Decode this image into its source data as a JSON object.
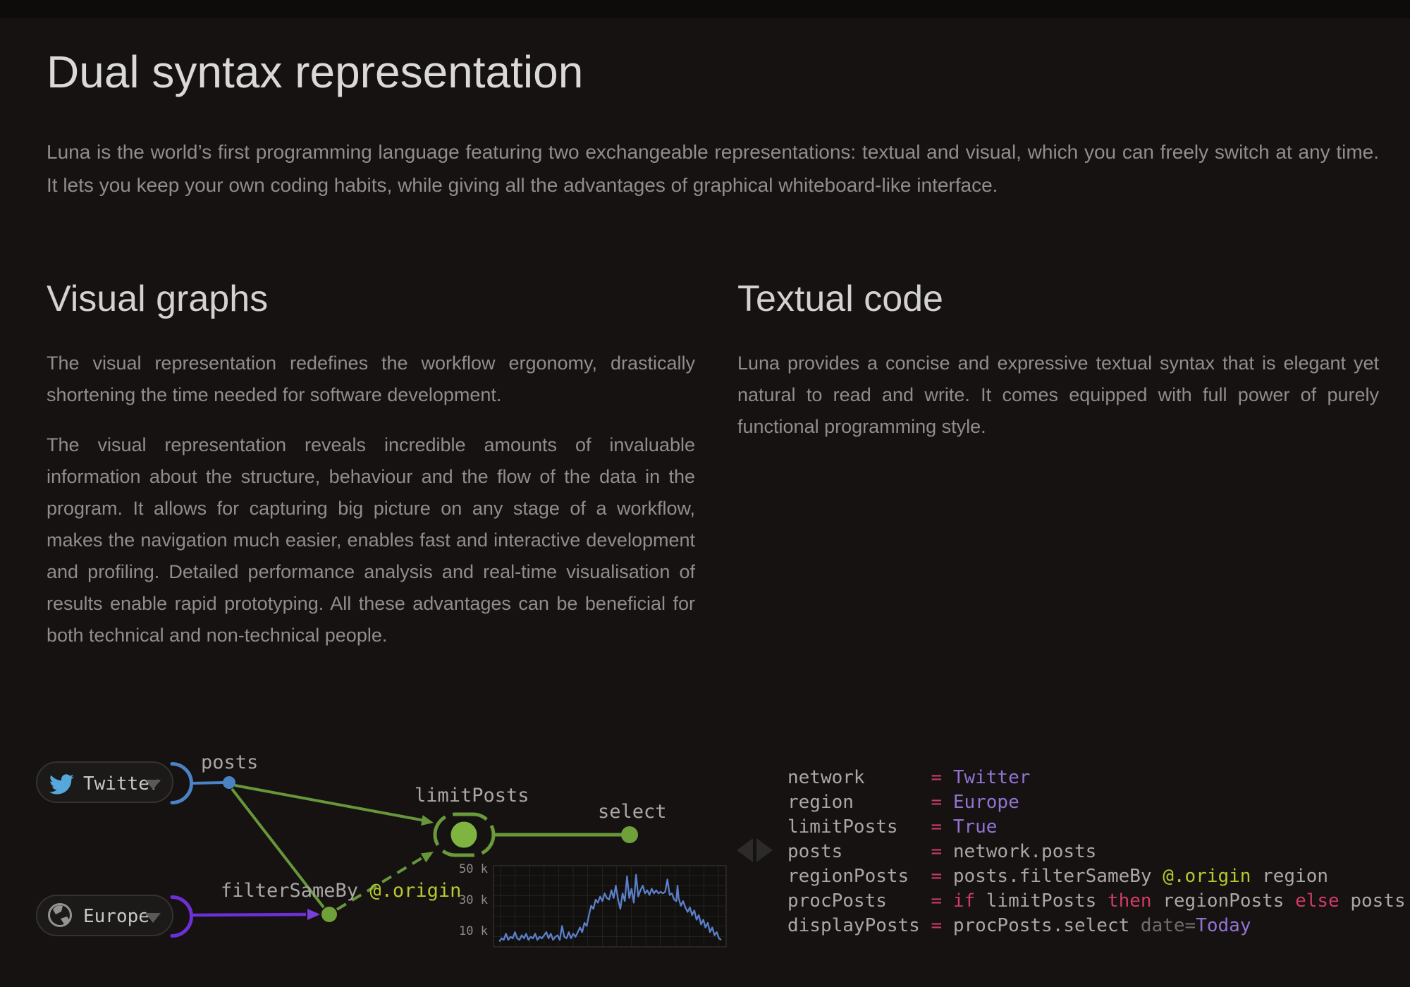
{
  "page": {
    "title": "Dual syntax representation",
    "intro": "Luna is the world’s first programming language featuring two exchangeable representations: textual and visual, which you can freely switch at any time. It lets you keep your own coding habits, while giving all the advantages of graphical whiteboard-like interface."
  },
  "visual_graphs": {
    "heading": "Visual graphs",
    "paragraphs": [
      "The visual representation redefines the workflow ergonomy, drastically shortening the time needed for software development.",
      "The visual representation reveals incredible amounts of invaluable information about the structure, behaviour and the flow of the data in the program. It allows for capturing big picture on any stage of a workflow, makes the navigation much easier, enables fast and interactive development and profiling. Detailed performance analysis and real-time visualisation of results enable rapid prototyping. All these advantages can be beneficial for both technical and non-technical people."
    ]
  },
  "textual_code": {
    "heading": "Textual code",
    "paragraph": "Luna provides a concise and expressive textual syntax that is elegant yet natural to read and write. It comes equipped with full power of purely functional programming style."
  },
  "graph": {
    "twitter_label": "Twitter",
    "europe_label": "Europe",
    "posts_label": "posts",
    "limitposts_label": "limitPosts",
    "select_label": "select",
    "filter_label": "filterSameBy ",
    "accessor_label": "@.origin"
  },
  "code": {
    "lines": [
      [
        {
          "t": "network      ",
          "c": "n"
        },
        {
          "t": "= ",
          "c": "o"
        },
        {
          "t": "Twitter",
          "c": "v"
        }
      ],
      [
        {
          "t": "region       ",
          "c": "n"
        },
        {
          "t": "= ",
          "c": "o"
        },
        {
          "t": "Europe",
          "c": "v"
        }
      ],
      [
        {
          "t": "limitPosts   ",
          "c": "n"
        },
        {
          "t": "= ",
          "c": "o"
        },
        {
          "t": "True",
          "c": "v"
        }
      ],
      [
        {
          "t": "posts        ",
          "c": "n"
        },
        {
          "t": "= ",
          "c": "o"
        },
        {
          "t": "network.posts",
          "c": "p"
        }
      ],
      [
        {
          "t": "regionPosts  ",
          "c": "n"
        },
        {
          "t": "= ",
          "c": "o"
        },
        {
          "t": "posts.filterSameBy ",
          "c": "p"
        },
        {
          "t": "@.origin",
          "c": "a"
        },
        {
          "t": " region",
          "c": "p"
        }
      ],
      [
        {
          "t": "procPosts    ",
          "c": "n"
        },
        {
          "t": "= ",
          "c": "o"
        },
        {
          "t": "if ",
          "c": "k"
        },
        {
          "t": "limitPosts ",
          "c": "p"
        },
        {
          "t": "then ",
          "c": "k"
        },
        {
          "t": "regionPosts ",
          "c": "p"
        },
        {
          "t": "else ",
          "c": "k"
        },
        {
          "t": "posts",
          "c": "p"
        }
      ],
      [
        {
          "t": "displayPosts ",
          "c": "n"
        },
        {
          "t": "= ",
          "c": "o"
        },
        {
          "t": "procPosts.select ",
          "c": "p"
        },
        {
          "t": "date=",
          "c": "d"
        },
        {
          "t": "Today",
          "c": "v"
        }
      ]
    ]
  },
  "colors": {
    "background": "#151211",
    "heading": "#d6d5d3",
    "body_text": "#8f8e8c",
    "twitter_blue": "#56a8dc",
    "edge_blue": "#4a82c4",
    "europe_purple": "#6d2fd6",
    "edge_green": "#67973a",
    "node_green": "#80b441",
    "code_pink": "#c93d63",
    "code_purple": "#9273d2",
    "code_yellow": "#b6c92f",
    "chart_line_blue": "#5b7fca"
  },
  "chart_data": {
    "type": "line",
    "title": "",
    "xlabel": "",
    "ylabel": "",
    "y_ticks": [
      "50 k",
      "30 k",
      "10 k"
    ],
    "y_tick_values": [
      50000,
      30000,
      10000
    ],
    "ylim": [
      0,
      54000
    ],
    "xlim": [
      0,
      1
    ],
    "grid": true,
    "legend": false,
    "points": [
      [
        0.01,
        3
      ],
      [
        0.02,
        5
      ],
      [
        0.03,
        4
      ],
      [
        0.04,
        8
      ],
      [
        0.05,
        4
      ],
      [
        0.06,
        6
      ],
      [
        0.07,
        5
      ],
      [
        0.08,
        9
      ],
      [
        0.09,
        5
      ],
      [
        0.1,
        4
      ],
      [
        0.11,
        7
      ],
      [
        0.12,
        5
      ],
      [
        0.13,
        8
      ],
      [
        0.14,
        4
      ],
      [
        0.15,
        6
      ],
      [
        0.16,
        5
      ],
      [
        0.17,
        8
      ],
      [
        0.18,
        4
      ],
      [
        0.19,
        6
      ],
      [
        0.2,
        5
      ],
      [
        0.21,
        7
      ],
      [
        0.22,
        9
      ],
      [
        0.23,
        5
      ],
      [
        0.24,
        8
      ],
      [
        0.25,
        4
      ],
      [
        0.26,
        6
      ],
      [
        0.27,
        7
      ],
      [
        0.28,
        4
      ],
      [
        0.29,
        13
      ],
      [
        0.3,
        6
      ],
      [
        0.31,
        5
      ],
      [
        0.32,
        9
      ],
      [
        0.33,
        5
      ],
      [
        0.34,
        8
      ],
      [
        0.35,
        6
      ],
      [
        0.36,
        9
      ],
      [
        0.37,
        12
      ],
      [
        0.38,
        9
      ],
      [
        0.39,
        15
      ],
      [
        0.4,
        13
      ],
      [
        0.41,
        20
      ],
      [
        0.42,
        26
      ],
      [
        0.43,
        24
      ],
      [
        0.44,
        30
      ],
      [
        0.45,
        28
      ],
      [
        0.46,
        32
      ],
      [
        0.47,
        29
      ],
      [
        0.48,
        34
      ],
      [
        0.49,
        31
      ],
      [
        0.5,
        30
      ],
      [
        0.51,
        36
      ],
      [
        0.52,
        31
      ],
      [
        0.53,
        39
      ],
      [
        0.54,
        30
      ],
      [
        0.55,
        24
      ],
      [
        0.56,
        34
      ],
      [
        0.57,
        29
      ],
      [
        0.58,
        45
      ],
      [
        0.59,
        31
      ],
      [
        0.6,
        37
      ],
      [
        0.61,
        28
      ],
      [
        0.62,
        46
      ],
      [
        0.63,
        32
      ],
      [
        0.64,
        36
      ],
      [
        0.65,
        39
      ],
      [
        0.66,
        34
      ],
      [
        0.67,
        36
      ],
      [
        0.68,
        33
      ],
      [
        0.69,
        37
      ],
      [
        0.7,
        34
      ],
      [
        0.71,
        36
      ],
      [
        0.72,
        34
      ],
      [
        0.73,
        35
      ],
      [
        0.74,
        34
      ],
      [
        0.75,
        35
      ],
      [
        0.76,
        43
      ],
      [
        0.77,
        33
      ],
      [
        0.78,
        34
      ],
      [
        0.79,
        30
      ],
      [
        0.8,
        29
      ],
      [
        0.805,
        39
      ],
      [
        0.81,
        31
      ],
      [
        0.82,
        26
      ],
      [
        0.83,
        29
      ],
      [
        0.84,
        25
      ],
      [
        0.85,
        22
      ],
      [
        0.86,
        25
      ],
      [
        0.87,
        20
      ],
      [
        0.88,
        23
      ],
      [
        0.89,
        17
      ],
      [
        0.9,
        20
      ],
      [
        0.91,
        14
      ],
      [
        0.92,
        17
      ],
      [
        0.93,
        12
      ],
      [
        0.94,
        15
      ],
      [
        0.95,
        9
      ],
      [
        0.96,
        12
      ],
      [
        0.97,
        7
      ],
      [
        0.98,
        9
      ],
      [
        0.99,
        5
      ],
      [
        1.0,
        4
      ]
    ]
  }
}
